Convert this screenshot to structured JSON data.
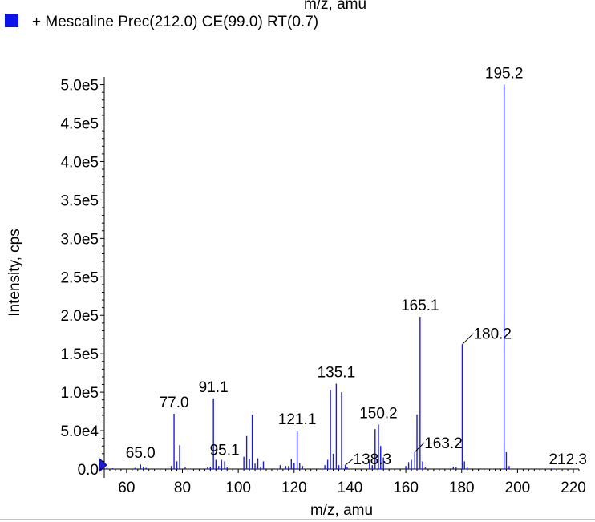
{
  "header": {
    "clipped_title": "m/z, amu",
    "legend_label": "+ Mescaline Prec(212.0) CE(99.0) RT(0.7)",
    "legend_color": "#0a14e6"
  },
  "chart_data": {
    "type": "bar",
    "title": "",
    "xlabel": "m/z, amu",
    "ylabel": "Intensity, cps",
    "xlim": [
      52,
      222
    ],
    "ylim": [
      0,
      510000
    ],
    "x_ticks": [
      60,
      80,
      100,
      120,
      140,
      160,
      180,
      200,
      220
    ],
    "x_tick_labels": [
      "60",
      "80",
      "100",
      "120",
      "140",
      "160",
      "180",
      "200",
      "220"
    ],
    "y_ticks": [
      0,
      50000,
      100000,
      150000,
      200000,
      250000,
      300000,
      350000,
      400000,
      450000,
      500000
    ],
    "y_tick_labels": [
      "0.0",
      "5.0e4",
      "1.0e5",
      "1.5e5",
      "2.0e5",
      "2.5e5",
      "3.0e5",
      "3.5e5",
      "4.0e5",
      "4.5e5",
      "5.0e5"
    ],
    "line_color": "#1a1ae0",
    "series": [
      {
        "name": "+ Mescaline Prec(212.0) CE(99.0) RT(0.7)",
        "x": [
          53.0,
          55.0,
          63.0,
          65.0,
          66.0,
          67.0,
          76.0,
          77.0,
          78.0,
          79.0,
          81.0,
          89.0,
          90.0,
          91.1,
          92.0,
          93.0,
          94.0,
          95.1,
          96.0,
          102.0,
          103.0,
          104.0,
          105.0,
          106.0,
          107.0,
          108.0,
          109.0,
          115.0,
          117.0,
          118.0,
          119.0,
          120.0,
          121.1,
          122.0,
          123.0,
          131.0,
          132.0,
          133.0,
          134.0,
          135.1,
          136.0,
          137.0,
          138.3,
          139.0,
          147.0,
          148.0,
          149.0,
          150.2,
          151.0,
          152.0,
          160.0,
          161.0,
          162.0,
          163.2,
          164.0,
          165.1,
          166.0,
          167.0,
          177.0,
          178.0,
          180.2,
          181.0,
          182.0,
          195.2,
          196.0,
          197.0,
          212.3
        ],
        "values": [
          1500,
          1000,
          1500,
          6000,
          3000,
          1500,
          4000,
          72000,
          10000,
          31000,
          2000,
          2000,
          3000,
          92000,
          12000,
          4000,
          12000,
          10000,
          2000,
          16000,
          43000,
          13000,
          71000,
          7000,
          14000,
          3000,
          10000,
          5000,
          4000,
          4000,
          13000,
          8000,
          50000,
          8000,
          4000,
          5000,
          12000,
          103000,
          20000,
          111000,
          5000,
          100000,
          5000,
          3000,
          9000,
          5000,
          52000,
          58000,
          30000,
          15000,
          4000,
          9000,
          12000,
          22000,
          71000,
          198000,
          10000,
          2000,
          3000,
          2000,
          162000,
          10000,
          3000,
          500000,
          22000,
          4000,
          1000
        ]
      }
    ],
    "peak_labels": [
      {
        "text": "195.2",
        "x": 195.2,
        "y": 500000
      },
      {
        "text": "165.1",
        "x": 165.1,
        "y": 198000
      },
      {
        "text": "180.2",
        "x": 180.2,
        "y": 162000
      },
      {
        "text": "135.1",
        "x": 135.1,
        "y": 111000
      },
      {
        "text": "91.1",
        "x": 91.1,
        "y": 92000
      },
      {
        "text": "77.0",
        "x": 77.0,
        "y": 72000
      },
      {
        "text": "150.2",
        "x": 150.2,
        "y": 58000
      },
      {
        "text": "121.1",
        "x": 121.1,
        "y": 50000
      },
      {
        "text": "163.2",
        "x": 163.2,
        "y": 22000
      },
      {
        "text": "95.1",
        "x": 95.1,
        "y": 10000
      },
      {
        "text": "138.3",
        "x": 138.3,
        "y": 5000
      },
      {
        "text": "65.0",
        "x": 65.0,
        "y": 6000
      },
      {
        "text": "212.3",
        "x": 212.3,
        "y": 1000
      }
    ]
  }
}
